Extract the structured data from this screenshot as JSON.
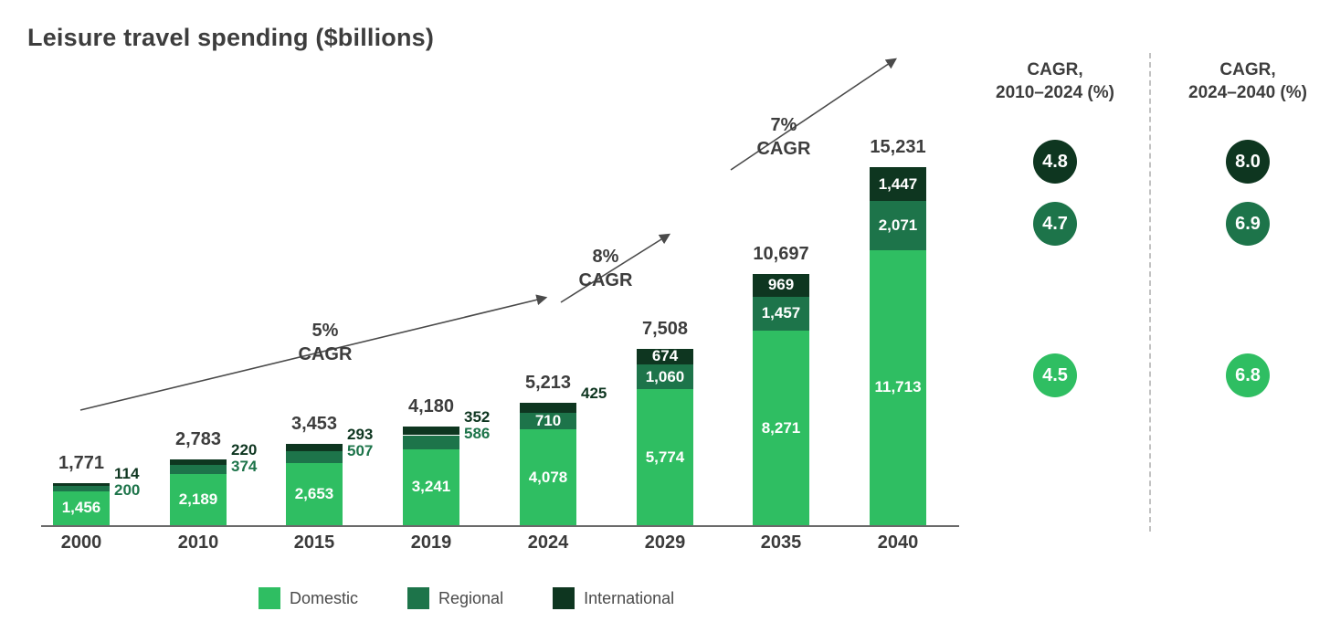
{
  "title": "Leisure travel spending ($billions)",
  "legend": [
    {
      "label": "Domestic",
      "color": "#2FBE62"
    },
    {
      "label": "Regional",
      "color": "#1D744A"
    },
    {
      "label": "International",
      "color": "#0E3620"
    }
  ],
  "annotations": [
    {
      "line1": "5%",
      "line2": "CAGR"
    },
    {
      "line1": "8%",
      "line2": "CAGR"
    },
    {
      "line1": "7%",
      "line2": "CAGR"
    }
  ],
  "cagr_panels": [
    {
      "title_line1": "CAGR,",
      "title_line2": "2010–2024 (%)",
      "values": [
        {
          "value": "4.8",
          "color": "#0E3620"
        },
        {
          "value": "4.7",
          "color": "#1D744A"
        },
        {
          "value": "4.5",
          "color": "#2FBE62"
        }
      ]
    },
    {
      "title_line1": "CAGR,",
      "title_line2": "2024–2040 (%)",
      "values": [
        {
          "value": "8.0",
          "color": "#0E3620"
        },
        {
          "value": "6.9",
          "color": "#1D744A"
        },
        {
          "value": "6.8",
          "color": "#2FBE62"
        }
      ]
    }
  ],
  "chart_data": {
    "type": "bar",
    "stacked": true,
    "title": "Leisure travel spending ($billions)",
    "unit": "$billions",
    "grid": false,
    "legend_position": "bottom",
    "categories": [
      "2000",
      "2010",
      "2015",
      "2019",
      "2024",
      "2029",
      "2035",
      "2040"
    ],
    "totals": [
      1771,
      2783,
      3453,
      4180,
      5213,
      7508,
      10697,
      15231
    ],
    "total_labels": [
      "1,771",
      "2,783",
      "3,453",
      "4,180",
      "5,213",
      "7,508",
      "10,697",
      "15,231"
    ],
    "series": [
      {
        "name": "Domestic",
        "color": "#2FBE62",
        "values": [
          1456,
          2189,
          2653,
          3241,
          4078,
          5774,
          8271,
          11713
        ],
        "labels": [
          "1,456",
          "2,189",
          "2,653",
          "3,241",
          "4,078",
          "5,774",
          "8,271",
          "11,713"
        ],
        "label_inside": [
          true,
          true,
          true,
          true,
          true,
          true,
          true,
          true
        ]
      },
      {
        "name": "Regional",
        "color": "#1D744A",
        "values": [
          200,
          374,
          507,
          586,
          710,
          1060,
          1457,
          2071
        ],
        "labels": [
          "200",
          "374",
          "507",
          "586",
          "710",
          "1,060",
          "1,457",
          "2,071"
        ],
        "label_inside": [
          false,
          false,
          false,
          false,
          true,
          true,
          true,
          true
        ]
      },
      {
        "name": "International",
        "color": "#0E3620",
        "values": [
          114,
          220,
          293,
          352,
          425,
          674,
          969,
          1447
        ],
        "labels": [
          "114",
          "220",
          "293",
          "352",
          "425",
          "674",
          "969",
          "1,447"
        ],
        "label_inside": [
          false,
          false,
          false,
          false,
          false,
          true,
          true,
          true
        ]
      }
    ],
    "cagr_annotations": [
      "5% CAGR",
      "8% CAGR",
      "7% CAGR"
    ]
  }
}
